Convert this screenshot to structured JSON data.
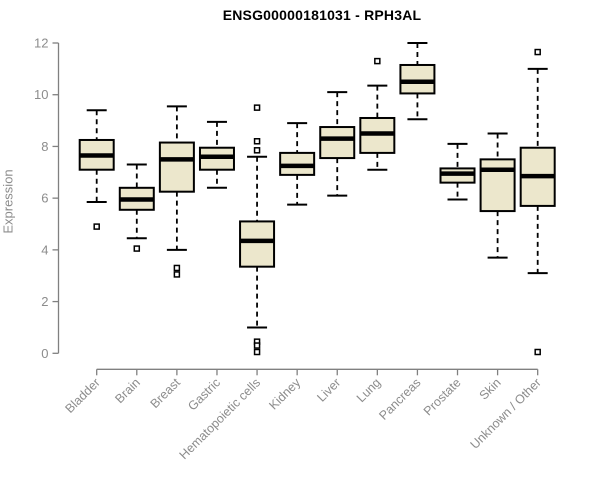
{
  "chart_data": {
    "type": "boxplot",
    "title": "ENSG00000181031 - RPH3AL",
    "ylabel": "Expression",
    "xlabel": "",
    "ylim": [
      0,
      12
    ],
    "yticks": [
      0,
      2,
      4,
      6,
      8,
      10,
      12
    ],
    "grid": false,
    "legend": "none",
    "categories": [
      "Bladder",
      "Brain",
      "Breast",
      "Gastric",
      "Hematopoietic cells",
      "Kidney",
      "Liver",
      "Lung",
      "Pancreas",
      "Prostate",
      "Skin",
      "Unknown / Other"
    ],
    "boxes": [
      {
        "category": "Bladder",
        "whisker_low": 5.85,
        "q1": 7.1,
        "median": 7.65,
        "q3": 8.25,
        "whisker_high": 9.4,
        "outliers": [
          4.9
        ]
      },
      {
        "category": "Brain",
        "whisker_low": 4.45,
        "q1": 5.55,
        "median": 5.95,
        "q3": 6.4,
        "whisker_high": 7.3,
        "outliers": [
          4.05
        ]
      },
      {
        "category": "Breast",
        "whisker_low": 4.0,
        "q1": 6.25,
        "median": 7.5,
        "q3": 8.15,
        "whisker_high": 9.55,
        "outliers": [
          3.3,
          3.05
        ]
      },
      {
        "category": "Gastric",
        "whisker_low": 6.4,
        "q1": 7.1,
        "median": 7.6,
        "q3": 7.95,
        "whisker_high": 8.95,
        "outliers": []
      },
      {
        "category": "Hematopoietic cells",
        "whisker_low": 1.0,
        "q1": 3.35,
        "median": 4.35,
        "q3": 5.1,
        "whisker_high": 7.6,
        "outliers": [
          9.5,
          8.2,
          7.85,
          0.45,
          0.3,
          0.05
        ]
      },
      {
        "category": "Kidney",
        "whisker_low": 5.75,
        "q1": 6.9,
        "median": 7.25,
        "q3": 7.75,
        "whisker_high": 8.9,
        "outliers": []
      },
      {
        "category": "Liver",
        "whisker_low": 6.1,
        "q1": 7.55,
        "median": 8.3,
        "q3": 8.75,
        "whisker_high": 10.1,
        "outliers": []
      },
      {
        "category": "Lung",
        "whisker_low": 7.1,
        "q1": 7.75,
        "median": 8.5,
        "q3": 9.1,
        "whisker_high": 10.35,
        "outliers": [
          11.3
        ]
      },
      {
        "category": "Pancreas",
        "whisker_low": 9.05,
        "q1": 10.05,
        "median": 10.5,
        "q3": 11.15,
        "whisker_high": 12.0,
        "outliers": []
      },
      {
        "category": "Prostate",
        "whisker_low": 5.95,
        "q1": 6.6,
        "median": 6.95,
        "q3": 7.15,
        "whisker_high": 8.1,
        "outliers": []
      },
      {
        "category": "Skin",
        "whisker_low": 3.7,
        "q1": 5.5,
        "median": 7.1,
        "q3": 7.5,
        "whisker_high": 8.5,
        "outliers": []
      },
      {
        "category": "Unknown / Other",
        "whisker_low": 3.1,
        "q1": 5.7,
        "median": 6.85,
        "q3": 7.95,
        "whisker_high": 11.0,
        "outliers": [
          11.65,
          0.05
        ]
      }
    ],
    "colors": {
      "box_fill": "#ece7cc",
      "box_border": "#000000",
      "median": "#000000",
      "whisker": "#000000",
      "axis": "#808080",
      "tick_label": "#8c8c8c",
      "title": "#000000",
      "background": "#ffffff"
    }
  }
}
